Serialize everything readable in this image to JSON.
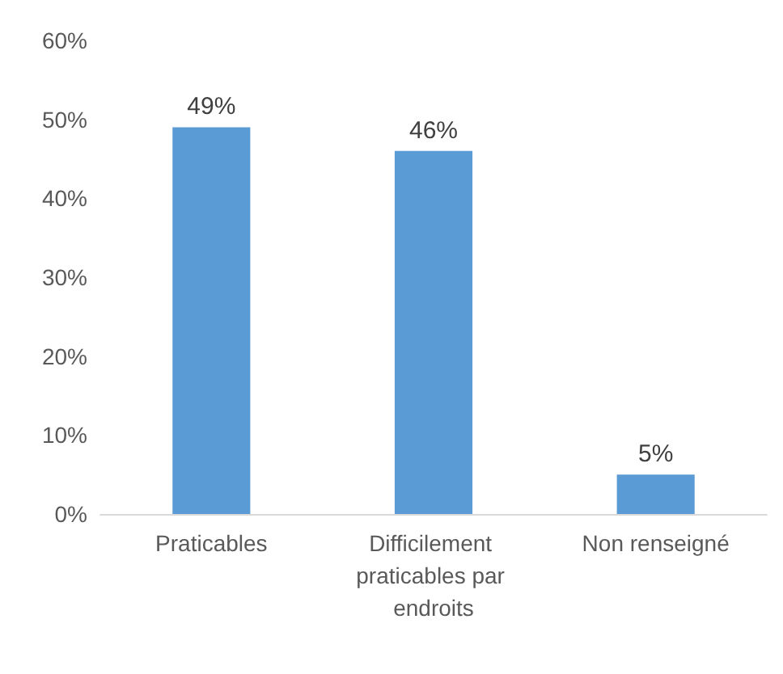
{
  "chart_data": {
    "type": "bar",
    "categories": [
      "Praticables",
      "Difficilement praticables par endroits",
      "Non renseigné"
    ],
    "values": [
      49,
      46,
      5
    ],
    "value_labels": [
      "49%",
      "46%",
      "5%"
    ],
    "color": "#5b9bd5",
    "ylim": [
      0,
      60
    ],
    "yticks": [
      {
        "value": 0,
        "label": "0%"
      },
      {
        "value": 10,
        "label": "10%"
      },
      {
        "value": 20,
        "label": "20%"
      },
      {
        "value": 30,
        "label": "30%"
      },
      {
        "value": 40,
        "label": "40%"
      },
      {
        "value": 50,
        "label": "50%"
      },
      {
        "value": 60,
        "label": "60%"
      }
    ],
    "grid": false
  }
}
